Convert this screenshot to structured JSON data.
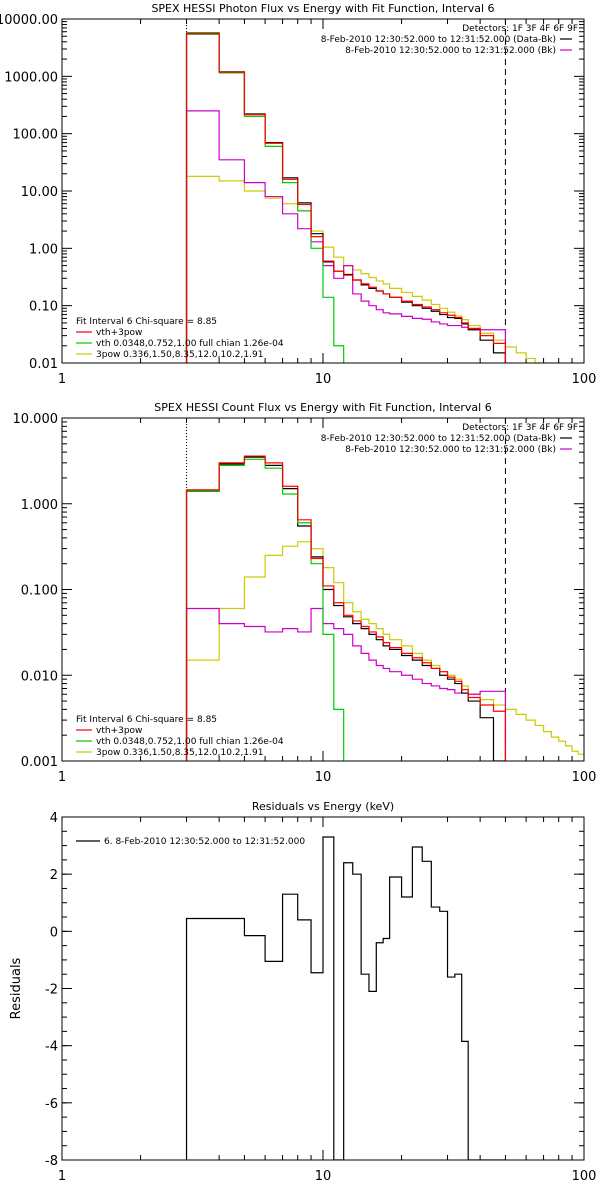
{
  "chart_data": [
    {
      "id": "photon",
      "type": "line",
      "title": "SPEX HESSI Photon Flux vs Energy with Fit Function, Interval 6",
      "xscale": "log",
      "yscale": "log",
      "xlim": [
        1,
        100
      ],
      "ylim": [
        0.01,
        10000
      ],
      "xticks": [
        {
          "v": 1,
          "label": "1"
        },
        {
          "v": 10,
          "label": "10"
        },
        {
          "v": 100,
          "label": "100"
        }
      ],
      "yticks": [
        {
          "v": 0.01,
          "label": "0.01"
        },
        {
          "v": 0.1,
          "label": "0.10"
        },
        {
          "v": 1,
          "label": "1.00"
        },
        {
          "v": 10,
          "label": "10.00"
        },
        {
          "v": 100,
          "label": "100.00"
        },
        {
          "v": 1000,
          "label": "1000.00"
        },
        {
          "v": 10000,
          "label": "10000.00"
        }
      ],
      "vlines": [
        {
          "x": 3,
          "style": "dotted",
          "color": "#000000"
        },
        {
          "x": 50,
          "style": "dashed",
          "color": "#000000"
        }
      ],
      "legend_top": {
        "placement": "top-right",
        "title": "Detectors: 1F 3F 4F 6F 9F",
        "entries": [
          {
            "text": "8-Feb-2010 12:30:52.000 to 12:31:52.000 (Data-Bk)",
            "color": "#000000"
          },
          {
            "text": "8-Feb-2010 12:30:52.000 to 12:31:52.000 (Bk)",
            "color": "#cc00cc"
          }
        ]
      },
      "legend_bottom": {
        "placement": "bottom-left",
        "title": "Fit Interval 6   Chi-square = 8.85",
        "entries": [
          {
            "text": "vth+3pow",
            "color": "#ff0000"
          },
          {
            "text": "vth 0.0348,0.752,1.00  full chian 1.26e-04",
            "color": "#00cc00"
          },
          {
            "text": "3pow 0.336,1.50,8.35,12.0,10.2,1.91",
            "color": "#cccc00"
          }
        ]
      },
      "series": [
        {
          "color": "#cccc00",
          "edges": [
            3,
            4,
            5,
            6,
            7,
            8,
            9,
            10,
            11,
            12,
            13,
            14,
            15,
            16,
            17,
            18,
            20,
            22,
            24,
            26,
            28,
            30,
            32,
            34,
            36,
            40,
            45,
            50,
            55,
            60,
            65,
            70,
            75
          ],
          "values": [
            18,
            15,
            10,
            7.5,
            6,
            4.5,
            2,
            1.05,
            0.7,
            0.5,
            0.42,
            0.36,
            0.31,
            0.27,
            0.24,
            0.2,
            0.17,
            0.145,
            0.125,
            0.105,
            0.09,
            0.077,
            0.066,
            0.057,
            0.045,
            0.033,
            0.025,
            0.019,
            0.015,
            0.012,
            0.01,
            0.009
          ]
        },
        {
          "color": "#cc00cc",
          "edges": [
            3,
            4,
            5,
            6,
            7,
            8,
            9,
            10,
            11,
            12,
            13,
            14,
            15,
            16,
            17,
            18,
            20,
            22,
            24,
            26,
            28,
            30,
            32,
            34,
            36,
            40,
            45,
            50
          ],
          "values": [
            250,
            35,
            14,
            8,
            4,
            2.2,
            1.3,
            0.5,
            0.3,
            0.5,
            0.16,
            0.12,
            0.1,
            0.085,
            0.075,
            0.072,
            0.065,
            0.06,
            0.058,
            0.052,
            0.048,
            0.045,
            0.045,
            0.042,
            0.04,
            0.038,
            0.038
          ]
        },
        {
          "color": "#000000",
          "edges": [
            3,
            4,
            5,
            6,
            7,
            8,
            9,
            10,
            11,
            12,
            13,
            14,
            15,
            16,
            17,
            18,
            20,
            22,
            24,
            26,
            28,
            30,
            32,
            34,
            36,
            40,
            45,
            50
          ],
          "values": [
            5500,
            1200,
            220,
            70,
            17,
            6.2,
            1.8,
            0.58,
            0.4,
            0.35,
            0.28,
            0.23,
            0.2,
            0.18,
            0.16,
            0.14,
            0.115,
            0.1,
            0.09,
            0.08,
            0.07,
            0.062,
            0.06,
            0.048,
            0.038,
            0.025,
            0.015
          ]
        },
        {
          "color": "#00cc00",
          "edges": [
            3,
            4,
            5,
            6,
            7,
            8,
            9,
            10,
            11,
            12
          ],
          "values": [
            5800,
            1150,
            200,
            60,
            14,
            4.5,
            1.0,
            0.14,
            0.02
          ]
        },
        {
          "color": "#ff0000",
          "edges": [
            3,
            4,
            5,
            6,
            7,
            8,
            9,
            10,
            11,
            12,
            13,
            14,
            15,
            16,
            17,
            18,
            20,
            22,
            24,
            26,
            28,
            30,
            32,
            34,
            36,
            40,
            45,
            50
          ],
          "values": [
            5600,
            1180,
            215,
            68,
            16,
            5.8,
            1.6,
            0.6,
            0.4,
            0.34,
            0.28,
            0.24,
            0.21,
            0.18,
            0.16,
            0.14,
            0.12,
            0.105,
            0.095,
            0.085,
            0.075,
            0.068,
            0.062,
            0.05,
            0.04,
            0.03,
            0.022
          ]
        }
      ]
    },
    {
      "id": "count",
      "type": "line",
      "title": "SPEX HESSI Count Flux vs Energy with Fit Function, Interval 6",
      "xscale": "log",
      "yscale": "log",
      "xlim": [
        1,
        100
      ],
      "ylim": [
        0.001,
        10
      ],
      "xticks": [
        {
          "v": 1,
          "label": "1"
        },
        {
          "v": 10,
          "label": "10"
        },
        {
          "v": 100,
          "label": "100"
        }
      ],
      "yticks": [
        {
          "v": 0.001,
          "label": "0.001"
        },
        {
          "v": 0.01,
          "label": "0.010"
        },
        {
          "v": 0.1,
          "label": "0.100"
        },
        {
          "v": 1,
          "label": "1.000"
        },
        {
          "v": 10,
          "label": "10.000"
        }
      ],
      "vlines": [
        {
          "x": 3,
          "style": "dotted",
          "color": "#000000"
        },
        {
          "x": 50,
          "style": "dashed",
          "color": "#000000"
        }
      ],
      "legend_top": {
        "placement": "top-right",
        "title": "Detectors: 1F 3F 4F 6F 9F",
        "entries": [
          {
            "text": "8-Feb-2010 12:30:52.000 to 12:31:52.000 (Data-Bk)",
            "color": "#000000"
          },
          {
            "text": "8-Feb-2010 12:30:52.000 to 12:31:52.000 (Bk)",
            "color": "#cc00cc"
          }
        ]
      },
      "legend_bottom": {
        "placement": "bottom-left",
        "title": "Fit Interval 6   Chi-square = 8.85",
        "entries": [
          {
            "text": "vth+3pow",
            "color": "#ff0000"
          },
          {
            "text": "vth 0.0348,0.752,1.00  full chian 1.26e-04",
            "color": "#00cc00"
          },
          {
            "text": "3pow 0.336,1.50,8.35,12.0,10.2,1.91",
            "color": "#cccc00"
          }
        ]
      },
      "series": [
        {
          "color": "#cccc00",
          "edges": [
            3,
            4,
            5,
            6,
            7,
            8,
            9,
            10,
            11,
            12,
            13,
            14,
            15,
            16,
            17,
            18,
            20,
            22,
            24,
            26,
            28,
            30,
            32,
            34,
            36,
            40,
            45,
            50,
            55,
            60,
            65,
            70,
            75,
            80,
            85,
            90,
            95,
            100
          ],
          "values": [
            0.015,
            0.06,
            0.14,
            0.25,
            0.32,
            0.36,
            0.3,
            0.18,
            0.12,
            0.07,
            0.055,
            0.045,
            0.04,
            0.035,
            0.03,
            0.026,
            0.022,
            0.018,
            0.015,
            0.013,
            0.011,
            0.01,
            0.009,
            0.0075,
            0.006,
            0.0052,
            0.0045,
            0.004,
            0.0035,
            0.003,
            0.0026,
            0.0022,
            0.0019,
            0.0017,
            0.0015,
            0.0013,
            0.0012
          ]
        },
        {
          "color": "#cc00cc",
          "edges": [
            3,
            4,
            5,
            6,
            7,
            8,
            9,
            10,
            11,
            12,
            13,
            14,
            15,
            16,
            17,
            18,
            20,
            22,
            24,
            26,
            28,
            30,
            32,
            34,
            36,
            40,
            45,
            50
          ],
          "values": [
            0.06,
            0.04,
            0.037,
            0.032,
            0.035,
            0.032,
            0.06,
            0.04,
            0.035,
            0.03,
            0.022,
            0.018,
            0.015,
            0.013,
            0.012,
            0.011,
            0.01,
            0.009,
            0.008,
            0.0075,
            0.007,
            0.0068,
            0.0062,
            0.0062,
            0.006,
            0.0065,
            0.0065
          ]
        },
        {
          "color": "#000000",
          "edges": [
            3,
            4,
            5,
            6,
            7,
            8,
            9,
            10,
            11,
            12,
            13,
            14,
            15,
            16,
            17,
            18,
            20,
            22,
            24,
            26,
            28,
            30,
            32,
            34,
            36,
            40,
            45,
            50
          ],
          "values": [
            1.4,
            2.9,
            3.5,
            2.8,
            1.5,
            0.55,
            0.24,
            0.1,
            0.065,
            0.048,
            0.04,
            0.035,
            0.03,
            0.026,
            0.022,
            0.02,
            0.017,
            0.015,
            0.013,
            0.012,
            0.01,
            0.009,
            0.008,
            0.0062,
            0.005,
            0.0032,
            0.001
          ]
        },
        {
          "color": "#00cc00",
          "edges": [
            3,
            4,
            5,
            6,
            7,
            8,
            9,
            10,
            11,
            12
          ],
          "values": [
            1.4,
            2.8,
            3.3,
            2.6,
            1.3,
            0.6,
            0.2,
            0.03,
            0.004
          ]
        },
        {
          "color": "#ff0000",
          "edges": [
            3,
            4,
            5,
            6,
            7,
            8,
            9,
            10,
            11,
            12,
            13,
            14,
            15,
            16,
            17,
            18,
            20,
            22,
            24,
            26,
            28,
            30,
            32,
            34,
            36,
            40,
            45,
            50
          ],
          "values": [
            1.45,
            3.0,
            3.6,
            3.0,
            1.6,
            0.65,
            0.23,
            0.11,
            0.07,
            0.05,
            0.043,
            0.037,
            0.032,
            0.028,
            0.024,
            0.021,
            0.018,
            0.016,
            0.014,
            0.012,
            0.011,
            0.0095,
            0.0085,
            0.0068,
            0.0055,
            0.0045,
            0.0038
          ]
        }
      ]
    },
    {
      "id": "resid",
      "type": "line",
      "title": "Residuals vs Energy (keV)",
      "ylabel": "Residuals",
      "xscale": "log",
      "yscale": "linear",
      "xlim": [
        1,
        100
      ],
      "ylim": [
        -8,
        4
      ],
      "xticks": [
        {
          "v": 1,
          "label": "1"
        },
        {
          "v": 10,
          "label": "10"
        },
        {
          "v": 100,
          "label": "100"
        }
      ],
      "yticks": [
        {
          "v": -8,
          "label": "-8"
        },
        {
          "v": -6,
          "label": "-6"
        },
        {
          "v": -4,
          "label": "-4"
        },
        {
          "v": -2,
          "label": "-2"
        },
        {
          "v": 0,
          "label": "0"
        },
        {
          "v": 2,
          "label": "2"
        },
        {
          "v": 4,
          "label": "4"
        }
      ],
      "legend_top": {
        "placement": "top-left",
        "entries": [
          {
            "text": "6.  8-Feb-2010 12:30:52.000 to 12:31:52.000",
            "color": "#000000"
          }
        ]
      },
      "series": [
        {
          "color": "#000000",
          "edges": [
            3,
            4,
            5,
            6,
            7,
            8,
            9,
            10,
            11,
            12,
            13,
            14,
            15,
            16,
            17,
            18,
            20,
            22,
            24,
            26,
            28,
            30,
            32,
            34,
            36,
            40,
            45,
            50
          ],
          "values": [
            0.45,
            0.45,
            -0.15,
            -1.05,
            1.3,
            0.4,
            -1.45,
            3.3,
            -8.05,
            2.4,
            2.0,
            -1.5,
            -2.1,
            -0.4,
            -0.25,
            1.9,
            1.2,
            2.95,
            2.45,
            0.85,
            0.7,
            -1.6,
            -1.5,
            -3.85,
            -8.0,
            -8.0,
            -8.0
          ]
        }
      ]
    }
  ]
}
